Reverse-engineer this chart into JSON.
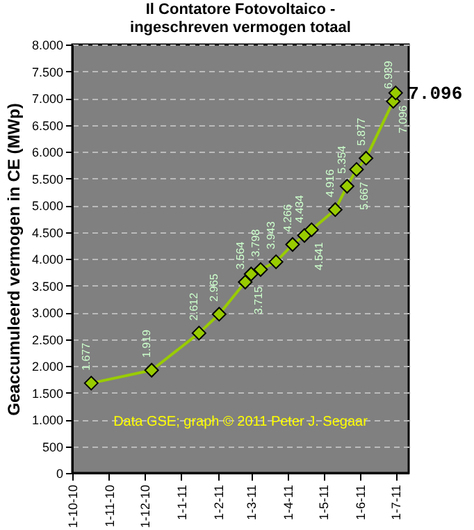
{
  "chart_data": {
    "type": "line",
    "title": "Il Contatore Fotovoltaico -",
    "subtitle": "ingeschreven vermogen totaal",
    "ylabel": "Geaccumuleerd vermogen in CE (MWp)",
    "x": [
      "2010-10-17",
      "2010-12-07",
      "2011-01-16",
      "2011-02-02",
      "2011-02-24",
      "2011-03-01",
      "2011-03-09",
      "2011-03-22",
      "2011-04-05",
      "2011-04-15",
      "2011-04-21",
      "2011-05-11",
      "2011-05-21",
      "2011-05-29",
      "2011-06-06",
      "2011-06-29",
      "2011-07-01"
    ],
    "series": [
      {
        "color": "#99cc00",
        "values": [
          1677,
          1919,
          2612,
          2965,
          3564,
          3715,
          3798,
          3943,
          4266,
          4434,
          4541,
          4916,
          5354,
          5667,
          5877,
          6939,
          7096
        ],
        "value_labels": [
          "1.677",
          "1.919",
          "2.612",
          "2.965",
          "3.564",
          "3.715",
          "3.798",
          "3.943",
          "4.266",
          "4.434",
          "4.541",
          "4.916",
          "5.354",
          "5.667",
          "5.877",
          "6.939",
          "7.096"
        ]
      }
    ],
    "xlim": [
      "2010-10-01",
      "2011-07-12"
    ],
    "xticks": [
      {
        "value": "2010-10-01",
        "label": "1-10-10"
      },
      {
        "value": "2010-11-01",
        "label": "1-11-10"
      },
      {
        "value": "2010-12-01",
        "label": "1-12-10"
      },
      {
        "value": "2011-01-01",
        "label": "1-1-11"
      },
      {
        "value": "2011-02-01",
        "label": "1-2-11"
      },
      {
        "value": "2011-03-01",
        "label": "1-3-11"
      },
      {
        "value": "2011-04-01",
        "label": "1-4-11"
      },
      {
        "value": "2011-05-01",
        "label": "1-5-11"
      },
      {
        "value": "2011-06-01",
        "label": "1-6-11"
      },
      {
        "value": "2011-07-01",
        "label": "1-7-11"
      }
    ],
    "ylim": [
      0,
      8000
    ],
    "yticks": [
      {
        "value": 0,
        "label": "0"
      },
      {
        "value": 500,
        "label": "500"
      },
      {
        "value": 1000,
        "label": "1.000"
      },
      {
        "value": 1500,
        "label": "1.500"
      },
      {
        "value": 2000,
        "label": "2.000"
      },
      {
        "value": 2500,
        "label": "2.500"
      },
      {
        "value": 3000,
        "label": "3.000"
      },
      {
        "value": 3500,
        "label": "3.500"
      },
      {
        "value": 4000,
        "label": "4.000"
      },
      {
        "value": 4500,
        "label": "4.500"
      },
      {
        "value": 5000,
        "label": "5.000"
      },
      {
        "value": 5500,
        "label": "5.500"
      },
      {
        "value": 6000,
        "label": "6.000"
      },
      {
        "value": 6500,
        "label": "6.500"
      },
      {
        "value": 7000,
        "label": "7.000"
      },
      {
        "value": 7500,
        "label": "7.500"
      },
      {
        "value": 8000,
        "label": "8.000"
      }
    ],
    "grid": "y",
    "marker": "diamond",
    "line_style": "solid",
    "annotations": [
      {
        "text": "7.096",
        "x": "2011-07-01",
        "y": 7096
      },
      "Data GSE; graph © 2011 Peter J. Segaar"
    ]
  }
}
